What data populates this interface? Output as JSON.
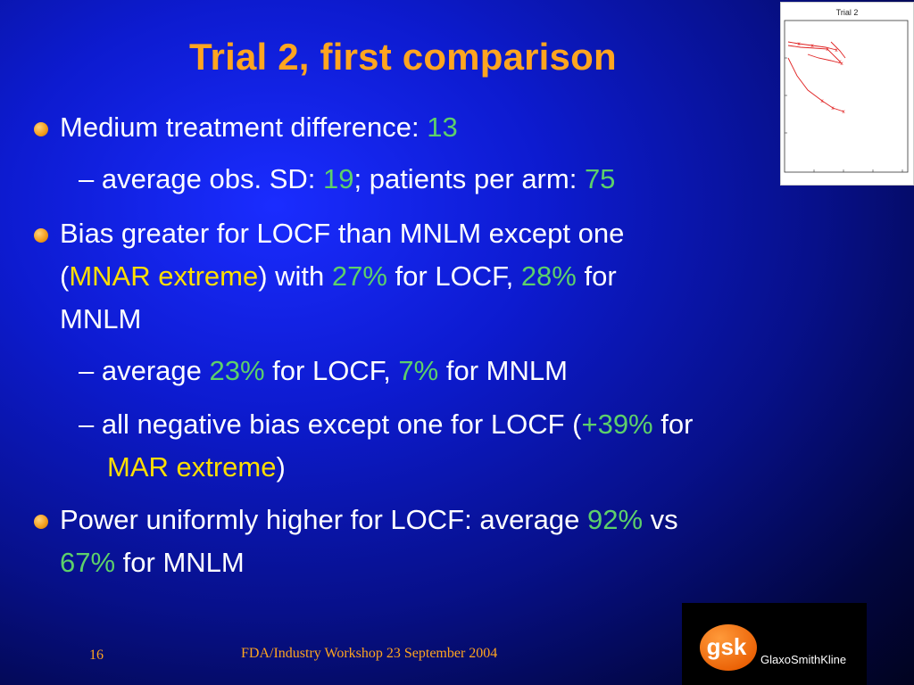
{
  "slide": {
    "title": "Trial 2, first comparison",
    "b1": {
      "text": "Medium treatment difference: ",
      "value": "13"
    },
    "s1": {
      "p1": "– average obs. SD: ",
      "v1": "19",
      "p2": "; patients per arm: ",
      "v2": "75"
    },
    "b2": {
      "l1": "Bias greater for LOCF than MNLM except one",
      "l2a": "(",
      "l2b": "MNAR extreme",
      "l2c": ") with ",
      "l2d": "27%",
      "l2e": " for LOCF, ",
      "l2f": "28%",
      "l2g": " for",
      "l3": "MNLM"
    },
    "s2": {
      "p1": "– average ",
      "v1": "23%",
      "p2": " for LOCF, ",
      "v2": "7%",
      "p3": " for MNLM"
    },
    "s3": {
      "p1": "– all negative bias except one for LOCF (",
      "v1": "+39%",
      "p2": " for",
      "p3": "MAR extreme",
      "p4": ")"
    },
    "b3": {
      "p1": "Power uniformly higher for LOCF: average ",
      "v1": "92%",
      "p2": " vs",
      "v2": "67%",
      "p3": " for MNLM"
    }
  },
  "thumbnail": {
    "title": "Trial 2"
  },
  "footer": {
    "page": "16",
    "event": "FDA/Industry Workshop 23 September 2004"
  },
  "logo": {
    "badge": "gsk",
    "name": "GlaxoSmithKline"
  },
  "colors": {
    "title": "#ffa51f",
    "highlight": "#5dd06a",
    "emphasis": "#ffde00"
  }
}
